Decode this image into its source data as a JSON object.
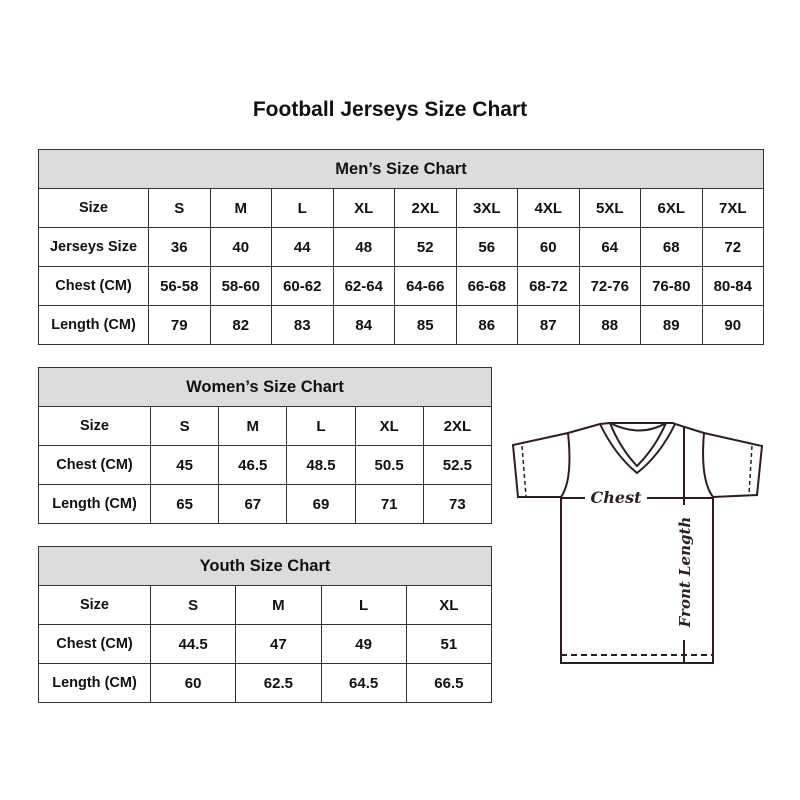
{
  "title": "Football Jerseys Size Chart",
  "colors": {
    "header_fill": "#dcdcdc",
    "border": "#333333"
  },
  "men": {
    "heading": "Men’s Size Chart",
    "rows": [
      {
        "label": "Size",
        "values": [
          "S",
          "M",
          "L",
          "XL",
          "2XL",
          "3XL",
          "4XL",
          "5XL",
          "6XL",
          "7XL"
        ]
      },
      {
        "label": "Jerseys Size",
        "values": [
          "36",
          "40",
          "44",
          "48",
          "52",
          "56",
          "60",
          "64",
          "68",
          "72"
        ]
      },
      {
        "label": "Chest (CM)",
        "values": [
          "56-58",
          "58-60",
          "60-62",
          "62-64",
          "64-66",
          "66-68",
          "68-72",
          "72-76",
          "76-80",
          "80-84"
        ]
      },
      {
        "label": "Length (CM)",
        "values": [
          "79",
          "82",
          "83",
          "84",
          "85",
          "86",
          "87",
          "88",
          "89",
          "90"
        ]
      }
    ]
  },
  "women": {
    "heading": "Women’s Size Chart",
    "rows": [
      {
        "label": "Size",
        "values": [
          "S",
          "M",
          "L",
          "XL",
          "2XL"
        ]
      },
      {
        "label": "Chest (CM)",
        "values": [
          "45",
          "46.5",
          "48.5",
          "50.5",
          "52.5"
        ]
      },
      {
        "label": "Length (CM)",
        "values": [
          "65",
          "67",
          "69",
          "71",
          "73"
        ]
      }
    ]
  },
  "youth": {
    "heading": "Youth Size Chart",
    "rows": [
      {
        "label": "Size",
        "values": [
          "S",
          "M",
          "L",
          "XL"
        ]
      },
      {
        "label": "Chest (CM)",
        "values": [
          "44.5",
          "47",
          "49",
          "51"
        ]
      },
      {
        "label": "Length (CM)",
        "values": [
          "60",
          "62.5",
          "64.5",
          "66.5"
        ]
      }
    ]
  },
  "diagram": {
    "chest_label": "Chest",
    "length_label": "Front Length"
  }
}
